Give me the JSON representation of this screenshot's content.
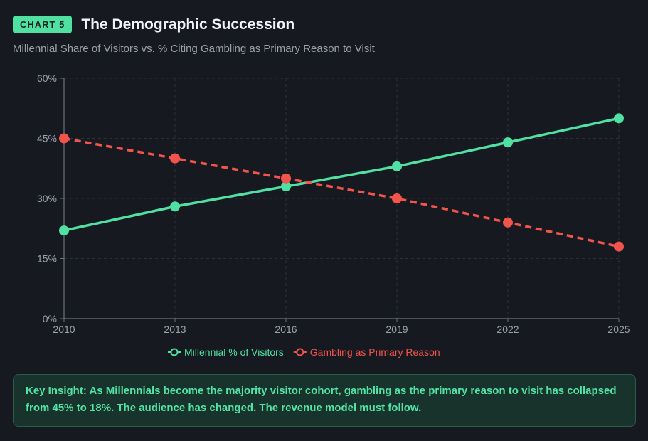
{
  "header": {
    "badge": "CHART 5",
    "title": "The Demographic Succession",
    "subtitle": "Millennial Share of Visitors vs. % Citing Gambling as Primary Reason to Visit"
  },
  "chart_data": {
    "type": "line",
    "title": "The Demographic Succession",
    "subtitle": "Millennial Share of Visitors vs. % Citing Gambling as Primary Reason to Visit",
    "x": [
      2010,
      2013,
      2016,
      2019,
      2022,
      2025
    ],
    "x_tick_labels": [
      "2010",
      "2013",
      "2016",
      "2019",
      "2022",
      "2025"
    ],
    "y_ticks": [
      0,
      15,
      30,
      45,
      60
    ],
    "y_tick_labels": [
      "0%",
      "15%",
      "30%",
      "45%",
      "60%"
    ],
    "ylim": [
      0,
      60
    ],
    "xlabel": "",
    "ylabel": "",
    "grid": true,
    "legend_position": "bottom-center",
    "series": [
      {
        "name": "Millennial % of Visitors",
        "values": [
          22,
          28,
          33,
          38,
          44,
          50
        ],
        "color": "#4fe0a2",
        "style": "solid"
      },
      {
        "name": "Gambling as Primary Reason",
        "values": [
          45,
          40,
          35,
          30,
          24,
          18
        ],
        "color": "#f2544b",
        "style": "dashed"
      }
    ]
  },
  "insight": {
    "text": "Key Insight: As Millennials become the majority visitor cohort, gambling as the primary reason to visit has collapsed from 45% to 18%. The audience has changed. The revenue model must follow."
  }
}
